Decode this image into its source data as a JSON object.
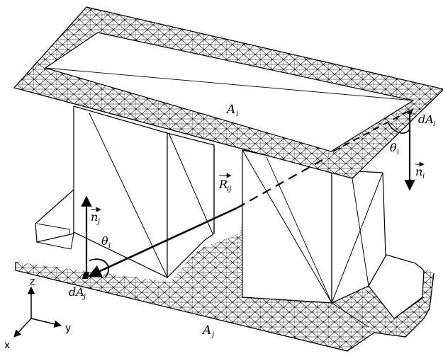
{
  "figure": {
    "labels": {
      "area_i": "A",
      "area_i_sub": "i",
      "area_j": "A",
      "area_j_sub": "j",
      "dA_i": "dA",
      "dA_i_sub": "i",
      "dA_j": "dA",
      "dA_j_sub": "j",
      "theta_i": "θ",
      "theta_i_sub": "i",
      "theta_j": "θ",
      "theta_j_sub": "i",
      "normal_i": "n",
      "normal_i_sub": "i",
      "normal_j": "n",
      "normal_j_sub": "j",
      "vector_R": "R",
      "vector_R_sub": "ij"
    },
    "axes": {
      "x": "x",
      "y": "y",
      "z": "z"
    },
    "colors": {
      "stroke": "#000000",
      "background": "#ffffff"
    }
  }
}
